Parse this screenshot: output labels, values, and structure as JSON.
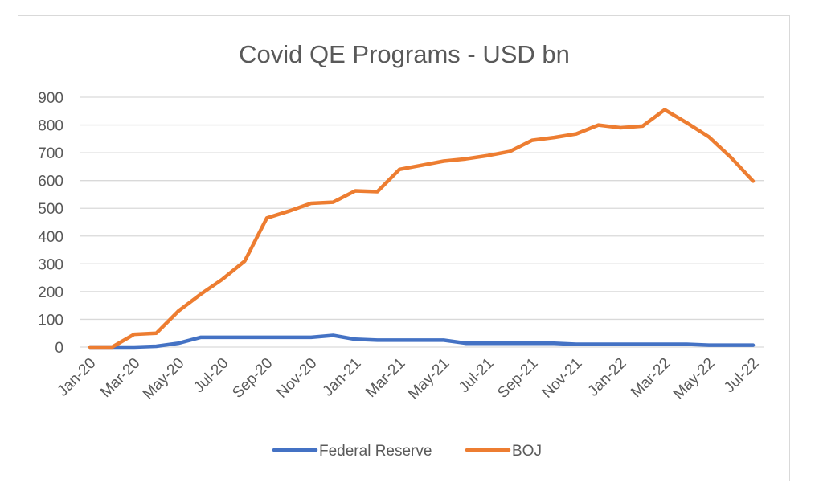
{
  "chart_data": {
    "type": "line",
    "title": "Covid QE Programs - USD bn",
    "xlabel": "",
    "ylabel": "",
    "ylim": [
      0,
      900
    ],
    "yticks": [
      0,
      100,
      200,
      300,
      400,
      500,
      600,
      700,
      800,
      900
    ],
    "grid": "horizontal",
    "legend": "bottom",
    "categories": [
      "Jan-20",
      "Feb-20",
      "Mar-20",
      "Apr-20",
      "May-20",
      "Jun-20",
      "Jul-20",
      "Aug-20",
      "Sep-20",
      "Oct-20",
      "Nov-20",
      "Dec-20",
      "Jan-21",
      "Feb-21",
      "Mar-21",
      "Apr-21",
      "May-21",
      "Jun-21",
      "Jul-21",
      "Aug-21",
      "Sep-21",
      "Oct-21",
      "Nov-21",
      "Dec-21",
      "Jan-22",
      "Feb-22",
      "Mar-22",
      "Apr-22",
      "May-22",
      "Jun-22",
      "Jul-22"
    ],
    "xtick_labels": [
      "Jan-20",
      "Mar-20",
      "May-20",
      "Jul-20",
      "Sep-20",
      "Nov-20",
      "Jan-21",
      "Mar-21",
      "May-21",
      "Jul-21",
      "Sep-21",
      "Nov-21",
      "Jan-22",
      "Mar-22",
      "May-22",
      "Jul-22"
    ],
    "series": [
      {
        "name": "Federal Reserve",
        "color": "#4472c4",
        "values": [
          0,
          0,
          0,
          3,
          14,
          35,
          35,
          35,
          35,
          35,
          35,
          42,
          28,
          25,
          25,
          25,
          25,
          14,
          14,
          14,
          14,
          14,
          10,
          10,
          10,
          10,
          10,
          10,
          7,
          7,
          7
        ]
      },
      {
        "name": "BOJ",
        "color": "#ed7d31",
        "values": [
          0,
          0,
          46,
          50,
          130,
          190,
          245,
          310,
          465,
          490,
          518,
          522,
          563,
          560,
          640,
          655,
          670,
          678,
          690,
          705,
          745,
          755,
          768,
          800,
          790,
          796,
          855,
          808,
          757,
          683,
          598
        ]
      }
    ]
  }
}
